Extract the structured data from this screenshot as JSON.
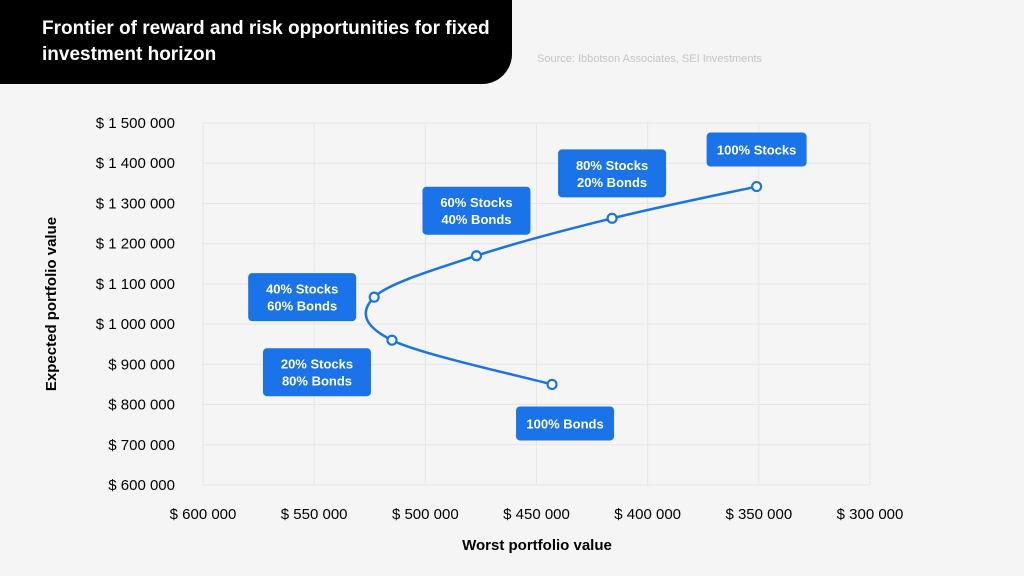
{
  "header": {
    "title": "Frontier of reward and risk opportunities for fixed investment horizon",
    "source": "Source: Ibbotson Associates, SEI Investments"
  },
  "colors": {
    "background": "#f5f5f5",
    "title_bg": "#000000",
    "accent": "#1a73e8",
    "grid": "#e6e6e6"
  },
  "chart_data": {
    "type": "line",
    "xlabel": "Worst portfolio value",
    "ylabel": "Expected portfolio value",
    "x_reversed": true,
    "xlim": [
      600000,
      300000
    ],
    "ylim": [
      600000,
      1500000
    ],
    "x_ticks": [
      600000,
      550000,
      500000,
      450000,
      400000,
      350000,
      300000
    ],
    "x_tick_labels": [
      "$ 600 000",
      "$ 550 000",
      "$ 500 000",
      "$ 450 000",
      "$ 400 000",
      "$ 350 000",
      "$ 300 000"
    ],
    "y_ticks": [
      1500000,
      1400000,
      1300000,
      1200000,
      1100000,
      1000000,
      900000,
      800000,
      700000,
      600000
    ],
    "y_tick_labels": [
      "$ 1 500 000",
      "$ 1 400 000",
      "$ 1 300 000",
      "$ 1 200 000",
      "$ 1 100 000",
      "$ 1 000 000",
      "$ 900 000",
      "$ 800 000",
      "$ 700 000",
      "$ 600 000"
    ],
    "grid": true,
    "points": [
      {
        "label": [
          "100% Bonds"
        ],
        "x": 443000,
        "y": 850000
      },
      {
        "label": [
          "20% Stocks",
          "80% Bonds"
        ],
        "x": 515000,
        "y": 960000
      },
      {
        "label": [
          "40% Stocks",
          "60% Bonds"
        ],
        "x": 523000,
        "y": 1067000
      },
      {
        "label": [
          "60% Stocks",
          "40% Bonds"
        ],
        "x": 477000,
        "y": 1170000
      },
      {
        "label": [
          "80% Stocks",
          "20% Bonds"
        ],
        "x": 416000,
        "y": 1263000
      },
      {
        "label": [
          "100% Stocks"
        ],
        "x": 351000,
        "y": 1342000
      }
    ]
  }
}
